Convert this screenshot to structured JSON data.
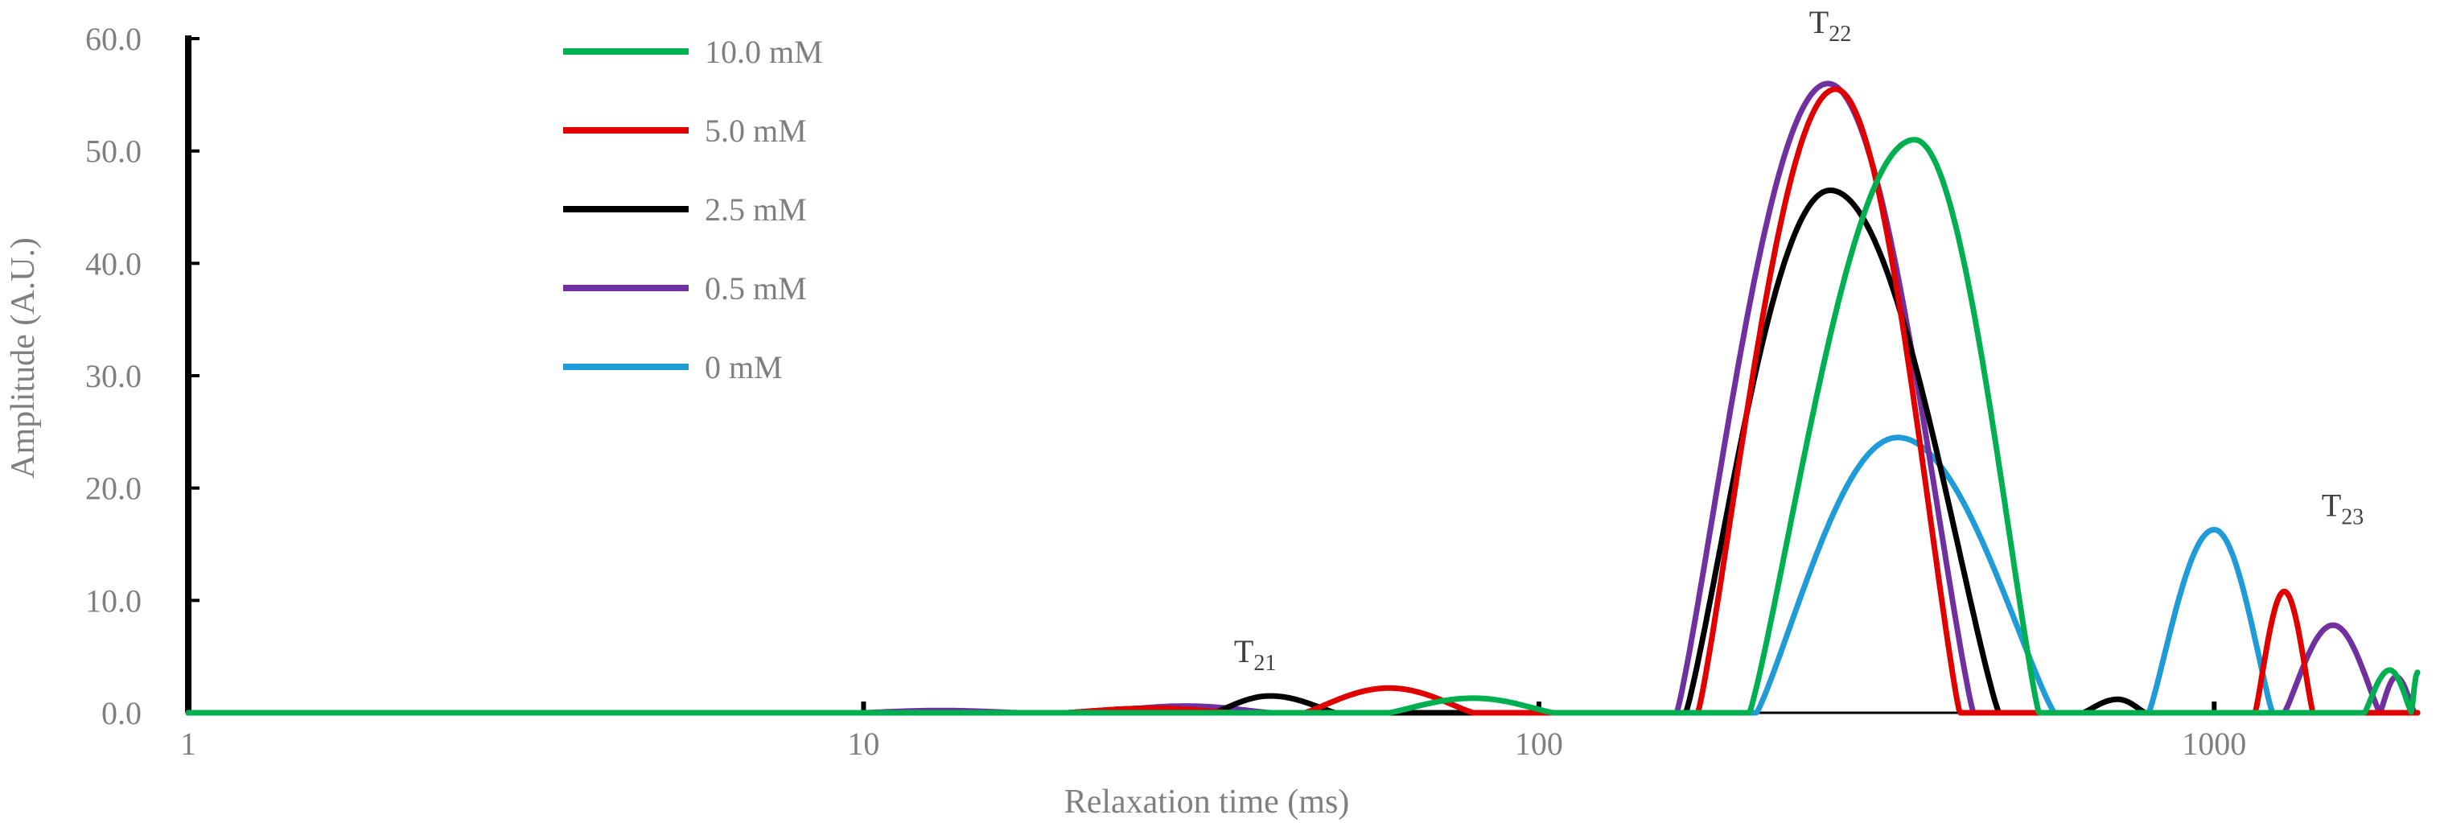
{
  "chart_data": {
    "type": "line",
    "xlabel": "Relaxation time (ms)",
    "ylabel": "Amplitude (A.U.)",
    "x_scale": "log",
    "xlim": [
      1,
      2000
    ],
    "ylim": [
      0,
      60
    ],
    "x_ticks": [
      "1",
      "10",
      "100",
      "1000"
    ],
    "y_ticks": [
      "0.0",
      "10.0",
      "20.0",
      "30.0",
      "40.0",
      "50.0",
      "60.0"
    ],
    "grid": false,
    "legend_position": "top-left",
    "annotations": [
      {
        "main": "T",
        "sub": "21",
        "x": 38,
        "y": 4.5
      },
      {
        "main": "T",
        "sub": "22",
        "x": 270,
        "y": 60.5
      },
      {
        "main": "T",
        "sub": "23",
        "x": 1550,
        "y": 17.5
      }
    ],
    "series": [
      {
        "name": "10.0 mM",
        "color": "#00b050",
        "peaks": [
          {
            "center": 80,
            "lo": 60,
            "hi": 105,
            "amp": 1.3
          },
          {
            "center": 360,
            "lo": 205,
            "hi": 550,
            "amp": 51
          },
          {
            "center": 1820,
            "lo": 1670,
            "hi": 1960,
            "amp": 3.8
          },
          {
            "center": 2000,
            "lo": 1960,
            "hi": 2040,
            "amp": 3.6
          }
        ]
      },
      {
        "name": "5.0 mM",
        "color": "#e00000",
        "peaks": [
          {
            "center": 27,
            "lo": 20,
            "hi": 35,
            "amp": 0.4
          },
          {
            "center": 60,
            "lo": 45,
            "hi": 80,
            "amp": 2.2
          },
          {
            "center": 275,
            "lo": 172,
            "hi": 420,
            "amp": 55.5
          },
          {
            "center": 1270,
            "lo": 1150,
            "hi": 1400,
            "amp": 10.8
          }
        ]
      },
      {
        "name": "2.5 mM",
        "color": "#000000",
        "peaks": [
          {
            "center": 27,
            "lo": 20,
            "hi": 33,
            "amp": 0.4
          },
          {
            "center": 40,
            "lo": 33,
            "hi": 50,
            "amp": 1.5
          },
          {
            "center": 270,
            "lo": 165,
            "hi": 480,
            "amp": 46.5
          },
          {
            "center": 720,
            "lo": 640,
            "hi": 790,
            "amp": 1.2
          }
        ]
      },
      {
        "name": "0.5 mM",
        "color": "#7030a0",
        "peaks": [
          {
            "center": 13,
            "lo": 10,
            "hi": 17,
            "amp": 0.2
          },
          {
            "center": 30,
            "lo": 22,
            "hi": 40,
            "amp": 0.6
          },
          {
            "center": 268,
            "lo": 160,
            "hi": 440,
            "amp": 56
          },
          {
            "center": 1500,
            "lo": 1270,
            "hi": 1760,
            "amp": 7.8
          },
          {
            "center": 1860,
            "lo": 1760,
            "hi": 1980,
            "amp": 3.2
          }
        ]
      },
      {
        "name": "0 mM",
        "color": "#1f9bd7",
        "peaks": [
          {
            "center": 340,
            "lo": 210,
            "hi": 580,
            "amp": 24.5
          },
          {
            "center": 1000,
            "lo": 800,
            "hi": 1220,
            "amp": 16.3
          }
        ]
      }
    ]
  }
}
